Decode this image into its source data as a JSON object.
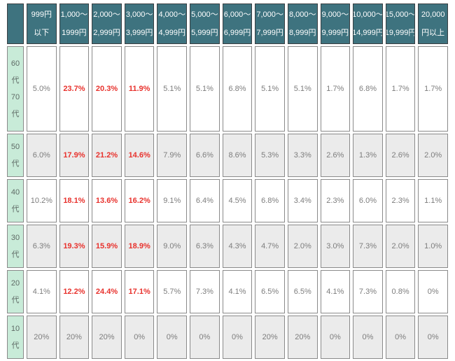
{
  "table": {
    "title": "age-by-price-range-percentage-table",
    "corner": "",
    "columns": [
      "999円\n以下",
      "1,000〜\n1999円",
      "2,000〜\n2,999円",
      "3,000〜\n3,999円",
      "4,000〜\n4,999円",
      "5,000〜\n5,999円",
      "6,000〜\n6,999円",
      "7,000〜\n7,999円",
      "8,000〜\n8,999円",
      "9,000〜\n9,999円",
      "10,000〜\n14,999円",
      "15,000〜\n19,999円",
      "20,000\n円以上"
    ],
    "rows": [
      {
        "label": "60\n代\n70\n代",
        "values": [
          "5.0%",
          "23.7%",
          "20.3%",
          "11.9%",
          "5.1%",
          "5.1%",
          "6.8%",
          "5.1%",
          "5.1%",
          "1.7%",
          "6.8%",
          "1.7%",
          "1.7%"
        ],
        "highlight_cols": [
          1,
          2,
          3
        ]
      },
      {
        "label": "50\n代",
        "values": [
          "6.0%",
          "17.9%",
          "21.2%",
          "14.6%",
          "7.9%",
          "6.6%",
          "8.6%",
          "5.3%",
          "3.3%",
          "2.6%",
          "1.3%",
          "2.6%",
          "2.0%"
        ],
        "highlight_cols": [
          1,
          2,
          3
        ]
      },
      {
        "label": "40\n代",
        "values": [
          "10.2%",
          "18.1%",
          "13.6%",
          "16.2%",
          "9.1%",
          "6.4%",
          "4.5%",
          "6.8%",
          "3.4%",
          "2.3%",
          "6.0%",
          "2.3%",
          "1.1%"
        ],
        "highlight_cols": [
          1,
          2,
          3
        ]
      },
      {
        "label": "30\n代",
        "values": [
          "6.3%",
          "19.3%",
          "15.9%",
          "18.9%",
          "9.0%",
          "6.3%",
          "4.3%",
          "4.7%",
          "2.0%",
          "3.0%",
          "7.3%",
          "2.0%",
          "1.0%"
        ],
        "highlight_cols": [
          1,
          2,
          3
        ]
      },
      {
        "label": "20\n代",
        "values": [
          "4.1%",
          "12.2%",
          "24.4%",
          "17.1%",
          "5.7%",
          "7.3%",
          "4.1%",
          "6.5%",
          "6.5%",
          "4.1%",
          "7.3%",
          "0.8%",
          "0%"
        ],
        "highlight_cols": [
          1,
          2,
          3
        ]
      },
      {
        "label": "10\n代",
        "values": [
          "20%",
          "20%",
          "20%",
          "0%",
          "0%",
          "0%",
          "0%",
          "20%",
          "20%",
          "0%",
          "0%",
          "0%",
          "0%"
        ],
        "highlight_cols": []
      }
    ]
  },
  "colors": {
    "header_bg": "#3E737F",
    "age_label_bg": "#C8EBD8",
    "alt_row_bg": "#EBEBEB",
    "highlight_text": "#E8322D",
    "value_text": "#7D7D7D"
  }
}
